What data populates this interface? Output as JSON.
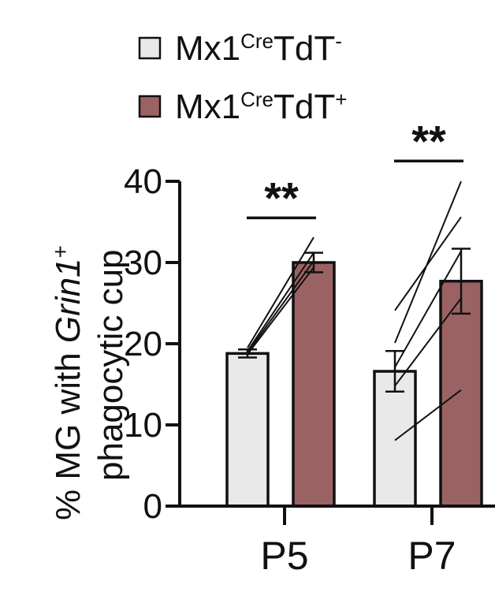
{
  "chart_data": {
    "type": "bar",
    "categories": [
      "P5",
      "P7"
    ],
    "ylabel_line1_prefix": "% MG with ",
    "ylabel_line1_italic": "Grin1",
    "ylabel_line1_sup": "+",
    "ylabel_line2": "phagocytic cup",
    "ylim": [
      0,
      40
    ],
    "yticks": [
      "0",
      "10",
      "20",
      "30",
      "40"
    ],
    "series": [
      {
        "name_base": "Mx1",
        "name_sup1": "Cre",
        "name_mid": "TdT",
        "name_sup2": "-",
        "color": "#e9e9ea",
        "values": [
          18.8,
          16.6
        ],
        "errors": [
          0.5,
          2.5
        ]
      },
      {
        "name_base": "Mx1",
        "name_sup1": "Cre",
        "name_mid": "TdT",
        "name_sup2": "+",
        "color": "#9b6264",
        "values": [
          30.0,
          27.7
        ],
        "errors": [
          1.2,
          4.0
        ]
      }
    ],
    "paired_lines": [
      [
        [
          19.5,
          33.1
        ],
        [
          19.1,
          31.2
        ],
        [
          18.9,
          30.2
        ],
        [
          18.7,
          29.4
        ]
      ],
      [
        [
          24.1,
          35.6
        ],
        [
          20.1,
          40.0
        ],
        [
          17.1,
          31.4
        ],
        [
          14.8,
          25.6
        ],
        [
          8.1,
          14.3
        ]
      ]
    ],
    "significance": [
      "**",
      "**"
    ]
  }
}
